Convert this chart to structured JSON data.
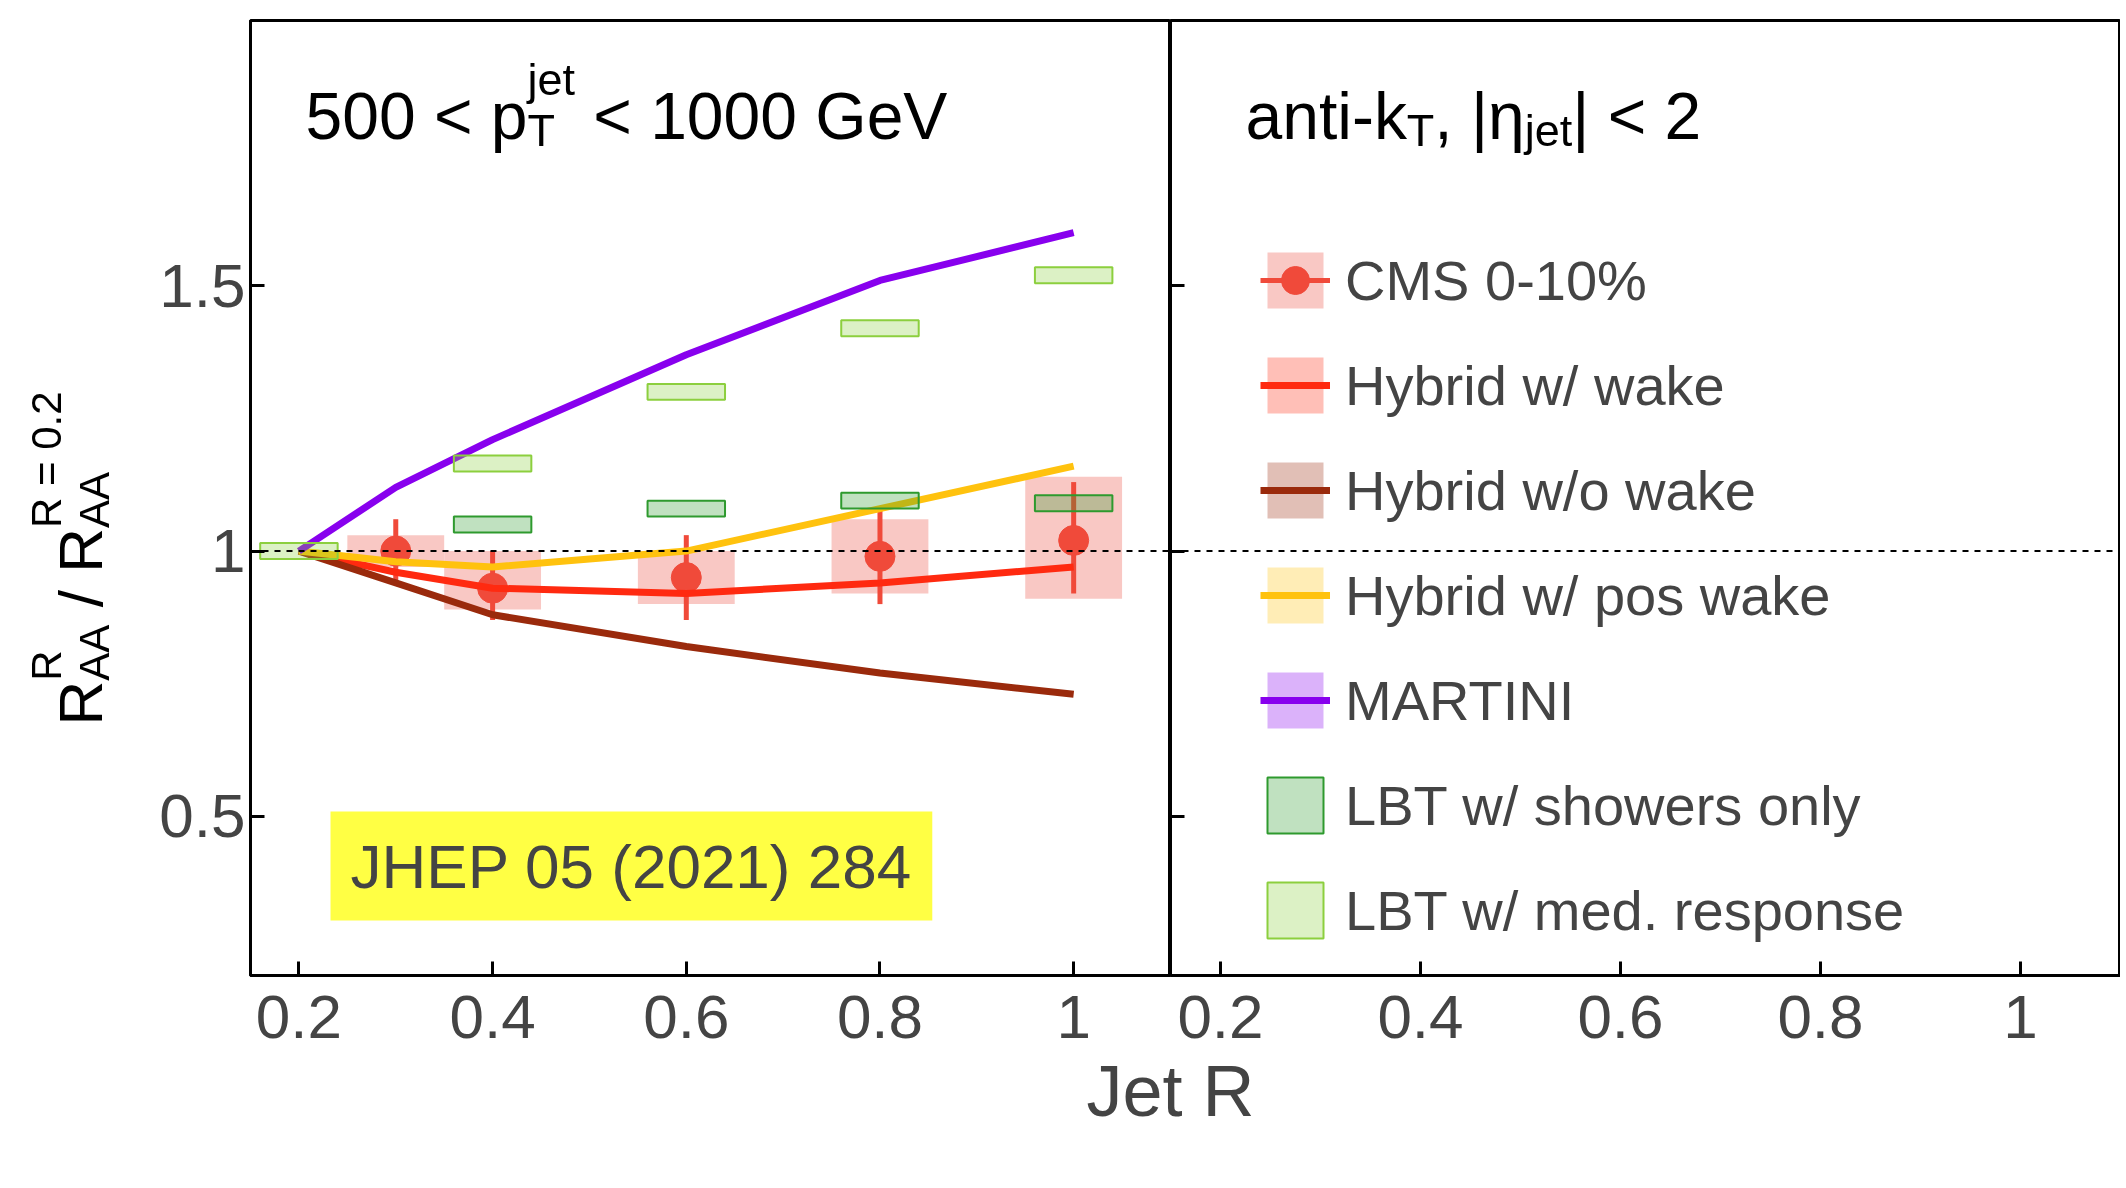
{
  "chart_data": [
    {
      "type": "line",
      "title": "500 < p$^{jet}$$_{T}$ < 1000 GeV",
      "xlabel": "Jet R",
      "ylabel": "R$^{R}$$_{AA}$ / R$^{R = 0.2}$$_{AA}$",
      "xlim": [
        0.15,
        1.1
      ],
      "xticks": [
        0.2,
        0.4,
        0.6,
        0.8,
        1
      ],
      "ylim": [
        0.2,
        2.0
      ],
      "yticks": [
        0.5,
        1,
        1.5
      ],
      "grid": false,
      "legend": "right",
      "line_style": "solid",
      "ref_lines": [
        {
          "axis": "y",
          "value": 1,
          "label": null,
          "color": "#000000",
          "line_style": "dashed"
        }
      ],
      "annotations": [
        "JHEP 05 (2021) 284"
      ],
      "series": [
        {
          "type": "bar",
          "color": "#f9c8c4",
          "x": [
            0.3,
            0.4,
            0.6,
            0.8,
            1.0
          ],
          "base": [
            0.97,
            0.89,
            0.9,
            0.92,
            0.91
          ],
          "values": [
            0.06,
            0.11,
            0.1,
            0.14,
            0.23
          ]
        },
        {
          "type": "scatter",
          "name": "CMS 0-10%",
          "color": "#f04a3a",
          "marker": "circle",
          "x": [
            0.3,
            0.4,
            0.6,
            0.8,
            1.0
          ],
          "values": [
            1.0,
            0.93,
            0.95,
            0.99,
            1.02
          ],
          "errors": [
            [
              0.94,
              1.06
            ],
            [
              0.87,
              1.0
            ],
            [
              0.87,
              1.03
            ],
            [
              0.9,
              1.08
            ],
            [
              0.92,
              1.13
            ]
          ]
        },
        {
          "name": "Hybrid w/ wake",
          "color": "#ff2a10",
          "x": [
            0.2,
            0.3,
            0.4,
            0.6,
            0.8,
            1.0
          ],
          "values": [
            1.0,
            0.96,
            0.93,
            0.92,
            0.94,
            0.97
          ]
        },
        {
          "name": "Hybrid w/o wake",
          "color": "#9a2a0c",
          "x": [
            0.2,
            0.3,
            0.4,
            0.6,
            0.8,
            1.0
          ],
          "values": [
            1.0,
            0.94,
            0.88,
            0.82,
            0.77,
            0.73
          ]
        },
        {
          "name": "Hybrid w/ pos wake",
          "color": "#ffc20e",
          "x": [
            0.2,
            0.3,
            0.4,
            0.6,
            0.8,
            1.0
          ],
          "values": [
            1.0,
            0.98,
            0.97,
            1.0,
            1.08,
            1.16
          ]
        },
        {
          "name": "MARTINI",
          "color": "#8800ee",
          "x": [
            0.2,
            0.3,
            0.4,
            0.6,
            0.8,
            1.0
          ],
          "values": [
            1.0,
            1.12,
            1.21,
            1.37,
            1.51,
            1.6
          ]
        },
        {
          "type": "bar",
          "name": "LBT w/ showers only",
          "color": "#2e9a2e",
          "x": [
            0.4,
            0.6,
            0.8,
            1.0
          ],
          "base": [
            1.035,
            1.065,
            1.08,
            1.075
          ],
          "values": [
            0.03,
            0.03,
            0.03,
            0.03
          ]
        },
        {
          "type": "bar",
          "name": "LBT w/ med. response",
          "color": "#8ccf3e",
          "x": [
            0.2,
            0.4,
            0.6,
            0.8,
            1.0
          ],
          "base": [
            0.985,
            1.15,
            1.285,
            1.405,
            1.505
          ],
          "values": [
            0.03,
            0.03,
            0.03,
            0.03,
            0.03
          ]
        }
      ]
    },
    {
      "type": "line",
      "title": "anti-k$_{T}$, |η$_{jet}$| < 2",
      "xlim": [
        0.15,
        1.1
      ],
      "xticks": [
        0.2,
        0.4,
        0.6,
        0.8,
        1
      ],
      "ylim": [
        0.2,
        2.0
      ],
      "yticks": [
        0.5,
        1,
        1.5
      ],
      "tick_labels": "x",
      "ref_lines": [
        {
          "axis": "y",
          "value": 1,
          "label": null,
          "color": "#000000",
          "line_style": "dashed"
        }
      ]
    }
  ]
}
